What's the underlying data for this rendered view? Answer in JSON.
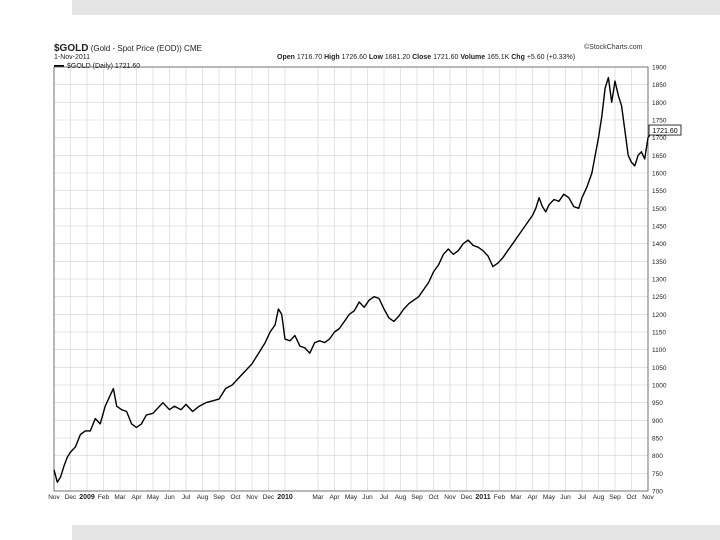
{
  "header": {
    "symbol": "$GOLD",
    "description": "(Gold - Spot Price (EOD)) CME",
    "date": "1-Nov-2011",
    "brand": "©StockCharts.com",
    "open_label": "Open",
    "open": "1716.70",
    "high_label": "High",
    "high": "1726.60",
    "low_label": "Low",
    "low": "1681.20",
    "close_label": "Close",
    "close": "1721.60",
    "volume_label": "Volume",
    "volume": "165.1K",
    "chg_label": "Chg",
    "chg": "+5.60 (+0.33%)"
  },
  "legend": {
    "label": "$GOLD (Daily) 1721.60"
  },
  "last_value_tag": "1721.60",
  "colors": {
    "line": "#000000",
    "grid": "#d0d0d0",
    "band": "#e4e4e4"
  },
  "chart_data": {
    "type": "line",
    "title": "$GOLD (Gold - Spot Price (EOD)) CME",
    "xlabel": "",
    "ylabel": "",
    "ylim": [
      700,
      1900
    ],
    "y_axis_side": "right",
    "grid": true,
    "y_ticks": [
      700,
      750,
      800,
      850,
      900,
      950,
      1000,
      1050,
      1100,
      1150,
      1200,
      1250,
      1300,
      1350,
      1400,
      1450,
      1500,
      1550,
      1600,
      1650,
      1700,
      1750,
      1800,
      1850,
      1900
    ],
    "x_tick_labels": [
      "Nov",
      "Dec",
      "2009",
      "Feb",
      "Mar",
      "Apr",
      "May",
      "Jun",
      "Jul",
      "Aug",
      "Sep",
      "Oct",
      "Nov",
      "Dec",
      "2010",
      "Mar",
      "Apr",
      "May",
      "Jun",
      "Jul",
      "Aug",
      "Sep",
      "Oct",
      "Nov",
      "Dec",
      "2011",
      "Feb",
      "Mar",
      "Apr",
      "May",
      "Jun",
      "Jul",
      "Aug",
      "Sep",
      "Oct",
      "Nov"
    ],
    "x_tick_months": [
      0,
      1,
      2,
      3,
      4,
      5,
      6,
      7,
      8,
      9,
      10,
      11,
      12,
      13,
      14,
      16,
      17,
      18,
      19,
      20,
      21,
      22,
      23,
      24,
      25,
      26,
      27,
      28,
      29,
      30,
      31,
      32,
      33,
      34,
      35,
      36
    ],
    "x_range": [
      0,
      36
    ],
    "series": [
      {
        "values": [
          [
            0.0,
            760
          ],
          [
            0.2,
            725
          ],
          [
            0.4,
            740
          ],
          [
            0.6,
            770
          ],
          [
            0.8,
            795
          ],
          [
            1.0,
            810
          ],
          [
            1.3,
            825
          ],
          [
            1.6,
            860
          ],
          [
            1.9,
            870
          ],
          [
            2.2,
            870
          ],
          [
            2.5,
            905
          ],
          [
            2.8,
            890
          ],
          [
            3.1,
            940
          ],
          [
            3.4,
            970
          ],
          [
            3.6,
            990
          ],
          [
            3.8,
            940
          ],
          [
            4.1,
            930
          ],
          [
            4.4,
            925
          ],
          [
            4.7,
            890
          ],
          [
            5.0,
            880
          ],
          [
            5.3,
            890
          ],
          [
            5.6,
            915
          ],
          [
            6.0,
            920
          ],
          [
            6.3,
            935
          ],
          [
            6.6,
            950
          ],
          [
            7.0,
            930
          ],
          [
            7.3,
            940
          ],
          [
            7.7,
            930
          ],
          [
            8.0,
            945
          ],
          [
            8.4,
            925
          ],
          [
            8.8,
            940
          ],
          [
            9.2,
            950
          ],
          [
            9.6,
            955
          ],
          [
            10.0,
            960
          ],
          [
            10.4,
            990
          ],
          [
            10.8,
            1000
          ],
          [
            11.2,
            1020
          ],
          [
            11.6,
            1040
          ],
          [
            12.0,
            1060
          ],
          [
            12.4,
            1090
          ],
          [
            12.8,
            1120
          ],
          [
            13.1,
            1150
          ],
          [
            13.4,
            1170
          ],
          [
            13.6,
            1215
          ],
          [
            13.8,
            1200
          ],
          [
            14.0,
            1130
          ],
          [
            14.3,
            1125
          ],
          [
            14.6,
            1140
          ],
          [
            14.9,
            1110
          ],
          [
            15.2,
            1105
          ],
          [
            15.5,
            1090
          ],
          [
            15.8,
            1120
          ],
          [
            16.1,
            1125
          ],
          [
            16.4,
            1120
          ],
          [
            16.7,
            1130
          ],
          [
            17.0,
            1150
          ],
          [
            17.3,
            1160
          ],
          [
            17.6,
            1180
          ],
          [
            17.9,
            1200
          ],
          [
            18.2,
            1210
          ],
          [
            18.5,
            1235
          ],
          [
            18.8,
            1220
          ],
          [
            19.1,
            1240
          ],
          [
            19.4,
            1250
          ],
          [
            19.7,
            1245
          ],
          [
            20.0,
            1215
          ],
          [
            20.3,
            1190
          ],
          [
            20.6,
            1180
          ],
          [
            20.9,
            1195
          ],
          [
            21.2,
            1215
          ],
          [
            21.5,
            1230
          ],
          [
            21.8,
            1240
          ],
          [
            22.1,
            1250
          ],
          [
            22.4,
            1270
          ],
          [
            22.7,
            1290
          ],
          [
            23.0,
            1320
          ],
          [
            23.3,
            1340
          ],
          [
            23.6,
            1370
          ],
          [
            23.9,
            1385
          ],
          [
            24.2,
            1370
          ],
          [
            24.5,
            1380
          ],
          [
            24.8,
            1400
          ],
          [
            25.1,
            1410
          ],
          [
            25.4,
            1395
          ],
          [
            25.7,
            1390
          ],
          [
            26.0,
            1380
          ],
          [
            26.3,
            1365
          ],
          [
            26.6,
            1335
          ],
          [
            26.9,
            1345
          ],
          [
            27.2,
            1360
          ],
          [
            27.5,
            1380
          ],
          [
            27.8,
            1400
          ],
          [
            28.1,
            1420
          ],
          [
            28.4,
            1440
          ],
          [
            28.7,
            1460
          ],
          [
            29.0,
            1480
          ],
          [
            29.2,
            1500
          ],
          [
            29.4,
            1530
          ],
          [
            29.6,
            1505
          ],
          [
            29.8,
            1490
          ],
          [
            30.0,
            1510
          ],
          [
            30.3,
            1525
          ],
          [
            30.6,
            1520
          ],
          [
            30.9,
            1540
          ],
          [
            31.2,
            1530
          ],
          [
            31.5,
            1505
          ],
          [
            31.8,
            1500
          ],
          [
            32.0,
            1530
          ],
          [
            32.3,
            1560
          ],
          [
            32.6,
            1600
          ],
          [
            32.8,
            1650
          ],
          [
            33.0,
            1700
          ],
          [
            33.2,
            1760
          ],
          [
            33.4,
            1840
          ],
          [
            33.6,
            1870
          ],
          [
            33.8,
            1800
          ],
          [
            34.0,
            1860
          ],
          [
            34.2,
            1820
          ],
          [
            34.4,
            1790
          ],
          [
            34.6,
            1720
          ],
          [
            34.8,
            1650
          ],
          [
            35.0,
            1630
          ],
          [
            35.2,
            1620
          ],
          [
            35.4,
            1650
          ],
          [
            35.6,
            1660
          ],
          [
            35.8,
            1640
          ],
          [
            36.0,
            1700
          ],
          [
            36.3,
            1721.6
          ]
        ]
      }
    ]
  }
}
